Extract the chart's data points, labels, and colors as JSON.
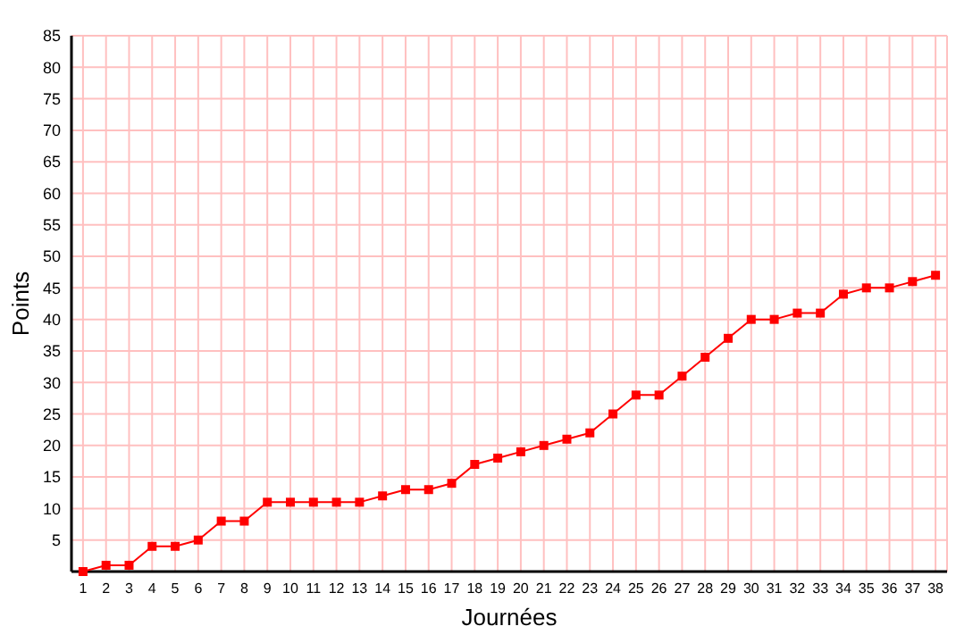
{
  "chart_data": {
    "type": "line",
    "xlabel": "Journées",
    "ylabel": "Points",
    "x": [
      1,
      2,
      3,
      4,
      5,
      6,
      7,
      8,
      9,
      10,
      11,
      12,
      13,
      14,
      15,
      16,
      17,
      18,
      19,
      20,
      21,
      22,
      23,
      24,
      25,
      26,
      27,
      28,
      29,
      30,
      31,
      32,
      33,
      34,
      35,
      36,
      37,
      38
    ],
    "series": [
      {
        "color": "#ff0000",
        "values": [
          0,
          1,
          1,
          4,
          4,
          5,
          8,
          8,
          11,
          11,
          11,
          11,
          11,
          12,
          13,
          13,
          14,
          17,
          18,
          19,
          20,
          21,
          22,
          25,
          28,
          28,
          31,
          34,
          37,
          40,
          40,
          41,
          41,
          44,
          45,
          45,
          46,
          47
        ]
      }
    ],
    "xlim": [
      0.5,
      38.5
    ],
    "xticks": [
      1,
      2,
      3,
      4,
      5,
      6,
      7,
      8,
      9,
      10,
      11,
      12,
      13,
      14,
      15,
      16,
      17,
      18,
      19,
      20,
      21,
      22,
      23,
      24,
      25,
      26,
      27,
      28,
      29,
      30,
      31,
      32,
      33,
      34,
      35,
      36,
      37,
      38
    ],
    "ylim": [
      0,
      85
    ],
    "yticks": [
      5,
      10,
      15,
      20,
      25,
      30,
      35,
      40,
      45,
      50,
      55,
      60,
      65,
      70,
      75,
      80,
      85
    ],
    "grid": true,
    "marker": "square",
    "line_style": "solid"
  }
}
